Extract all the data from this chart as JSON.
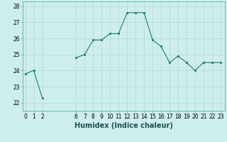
{
  "x": [
    0,
    1,
    2,
    6,
    7,
    8,
    9,
    10,
    11,
    12,
    13,
    14,
    15,
    16,
    17,
    18,
    19,
    20,
    21,
    22,
    23
  ],
  "y": [
    23.8,
    24.0,
    22.3,
    24.8,
    25.0,
    25.9,
    25.9,
    26.3,
    26.3,
    27.6,
    27.6,
    27.6,
    25.9,
    25.5,
    24.5,
    24.9,
    24.5,
    24.0,
    24.5,
    24.5,
    24.5
  ],
  "line_color": "#1a7a6e",
  "marker_color": "#1a7a6e",
  "bg_color": "#ceeeed",
  "grid_color": "#b0d8d5",
  "xlabel": "Humidex (Indice chaleur)",
  "ylim": [
    21.5,
    28.3
  ],
  "yticks": [
    22,
    23,
    24,
    25,
    26,
    27,
    28
  ],
  "xticks": [
    0,
    1,
    2,
    6,
    7,
    8,
    9,
    10,
    11,
    12,
    13,
    14,
    15,
    16,
    17,
    18,
    19,
    20,
    21,
    22,
    23
  ],
  "xlim": [
    -0.3,
    23.5
  ],
  "xlabel_fontsize": 7,
  "tick_fontsize": 5.5
}
